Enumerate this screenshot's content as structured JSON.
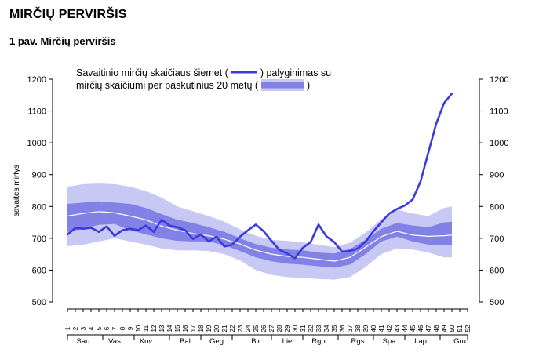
{
  "page": {
    "title": "MIRČIŲ PERVIRŠIS",
    "caption": "1 pav. Mirčių perviršis"
  },
  "chart_data": {
    "type": "line",
    "ylabel": "savaitės mirtys",
    "ylim": [
      500,
      1200
    ],
    "yticks": [
      500,
      600,
      700,
      800,
      900,
      1000,
      1100,
      1200
    ],
    "xlim": [
      1,
      52
    ],
    "weeks": [
      1,
      2,
      3,
      4,
      5,
      6,
      7,
      8,
      9,
      10,
      11,
      12,
      13,
      14,
      15,
      16,
      17,
      18,
      19,
      20,
      21,
      22,
      23,
      24,
      25,
      26,
      27,
      28,
      29,
      30,
      31,
      32,
      33,
      34,
      35,
      36,
      37,
      38,
      39,
      40,
      41,
      42,
      43,
      44,
      45,
      46,
      47,
      48,
      49,
      50,
      51,
      52
    ],
    "months": [
      {
        "label": "Sau",
        "center": 3
      },
      {
        "label": "Vas",
        "center": 7
      },
      {
        "label": "Kov",
        "center": 11
      },
      {
        "label": "Bal",
        "center": 16
      },
      {
        "label": "Geg",
        "center": 20
      },
      {
        "label": "Bir",
        "center": 25
      },
      {
        "label": "Lie",
        "center": 29
      },
      {
        "label": "Rgp",
        "center": 33
      },
      {
        "label": "Rgs",
        "center": 38
      },
      {
        "label": "Spa",
        "center": 42
      },
      {
        "label": "Lap",
        "center": 46
      },
      {
        "label": "Gru",
        "center": 51
      }
    ],
    "month_boundaries": [
      1,
      5.5,
      9.5,
      14,
      18,
      22,
      27,
      31,
      35.5,
      40,
      44,
      48.5,
      52
    ],
    "legend": {
      "line1_before": "Savaitinio mirčių skaičiaus šiemet (",
      "line1_after": ") palyginimas su",
      "line2_before": "mirčių skaičiumi per paskutinius 20 metų (",
      "line2_after": ")"
    },
    "colors": {
      "current": "#3a3ae0",
      "outer_band": "#c8c8f4",
      "inner_band": "#8282e6",
      "median": "#ffffff"
    },
    "current_year": {
      "x": [
        1,
        2,
        3,
        4,
        5,
        6,
        7,
        8,
        9,
        10,
        11,
        12,
        13,
        14,
        15,
        16,
        17,
        18,
        19,
        20,
        21,
        22,
        23,
        24,
        25,
        26,
        27,
        28,
        29,
        30,
        31,
        32,
        33,
        34,
        35,
        36,
        37,
        38,
        39,
        40,
        41,
        42,
        43,
        44,
        45,
        46,
        47,
        48,
        49,
        50
      ],
      "y": [
        712,
        732,
        730,
        733,
        720,
        737,
        708,
        725,
        730,
        725,
        740,
        720,
        758,
        740,
        735,
        725,
        698,
        712,
        690,
        705,
        674,
        680,
        705,
        725,
        743,
        722,
        692,
        664,
        652,
        637,
        670,
        688,
        743,
        706,
        688,
        658,
        660,
        668,
        690,
        722,
        750,
        778,
        792,
        803,
        822,
        878,
        970,
        1060,
        1125,
        1155
      ]
    },
    "range_20y": {
      "x": [
        1,
        3,
        5,
        7,
        9,
        11,
        13,
        15,
        17,
        19,
        21,
        23,
        25,
        27,
        29,
        31,
        33,
        35,
        37,
        39,
        41,
        43,
        45,
        47,
        49,
        50
      ],
      "min": [
        675,
        680,
        690,
        700,
        690,
        680,
        668,
        662,
        662,
        660,
        650,
        630,
        600,
        585,
        578,
        575,
        572,
        570,
        578,
        610,
        650,
        668,
        665,
        655,
        640,
        640
      ],
      "q1": [
        720,
        730,
        742,
        745,
        725,
        712,
        700,
        692,
        690,
        690,
        678,
        660,
        640,
        628,
        620,
        617,
        612,
        608,
        617,
        650,
        690,
        705,
        690,
        680,
        680,
        680
      ],
      "median": [
        770,
        778,
        784,
        780,
        770,
        758,
        738,
        725,
        715,
        708,
        697,
        682,
        663,
        650,
        643,
        640,
        634,
        628,
        640,
        672,
        705,
        722,
        710,
        706,
        708,
        710
      ],
      "q3": [
        808,
        812,
        816,
        812,
        808,
        795,
        776,
        758,
        748,
        735,
        720,
        700,
        682,
        670,
        665,
        662,
        655,
        652,
        666,
        695,
        730,
        748,
        740,
        735,
        750,
        752
      ],
      "max": [
        862,
        870,
        872,
        870,
        862,
        848,
        828,
        800,
        785,
        770,
        752,
        728,
        708,
        695,
        692,
        687,
        680,
        672,
        686,
        718,
        760,
        790,
        778,
        770,
        795,
        800
      ]
    }
  }
}
